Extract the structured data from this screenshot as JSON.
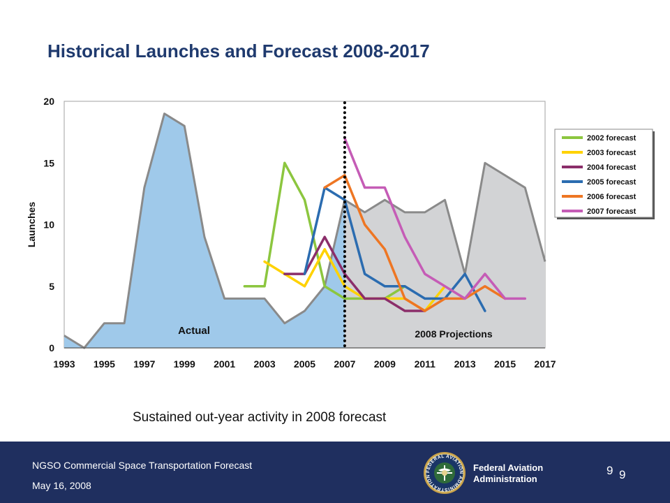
{
  "slide": {
    "title": "Historical Launches and Forecast 2008-2017",
    "caption": "Sustained out-year activity in 2008 forecast"
  },
  "footer": {
    "title": "NGSO Commercial Space Transportation Forecast",
    "date": "May 16, 2008",
    "agency_line1": "Federal Aviation",
    "agency_line2": "Administration",
    "page_number": "9",
    "page_number_shadow": "9",
    "seal_text": "FEDERAL AVIATION ADMINISTRATION"
  },
  "colors": {
    "title": "#1f3a6e",
    "footer_bg": "#1f2f5f",
    "actual_fill": "#9fc9ea",
    "projection_fill": "#d2d3d5",
    "area_line": "#8a8a8a"
  },
  "chart_data": {
    "type": "area",
    "ylabel": "Launches",
    "xlabel": "",
    "ylim": [
      0,
      20
    ],
    "xlim": [
      1993,
      2017
    ],
    "yticks": [
      0,
      5,
      10,
      15,
      20
    ],
    "xticks": [
      1993,
      1995,
      1997,
      1999,
      2001,
      2003,
      2005,
      2007,
      2009,
      2011,
      2013,
      2015,
      2017
    ],
    "divider_year": 2007,
    "area_labels": {
      "actual": "Actual",
      "projection": "2008 Projections"
    },
    "actual": {
      "name": "Actual",
      "x": [
        1993,
        1994,
        1995,
        1996,
        1997,
        1998,
        1999,
        2000,
        2001,
        2002,
        2003,
        2004,
        2005,
        2006,
        2007
      ],
      "values": [
        1,
        0,
        2,
        2,
        13,
        19,
        18,
        9,
        4,
        4,
        4,
        2,
        3,
        5,
        12
      ]
    },
    "projection": {
      "name": "2008 Projections",
      "x": [
        2007,
        2008,
        2009,
        2010,
        2011,
        2012,
        2013,
        2014,
        2015,
        2016,
        2017
      ],
      "values": [
        12,
        11,
        12,
        11,
        11,
        12,
        6,
        15,
        14,
        13,
        7
      ]
    },
    "legend_position": "right",
    "series": [
      {
        "name": "2002 forecast",
        "color": "#8cc63f",
        "x": [
          2002,
          2003,
          2004,
          2005,
          2006,
          2007,
          2008,
          2009,
          2010
        ],
        "values": [
          5,
          5,
          15,
          12,
          5,
          4,
          4,
          4,
          5
        ]
      },
      {
        "name": "2003 forecast",
        "color": "#ffd200",
        "x": [
          2003,
          2004,
          2005,
          2006,
          2007,
          2008,
          2009,
          2010,
          2011,
          2012
        ],
        "values": [
          7,
          6,
          5,
          8,
          5,
          4,
          4,
          4,
          3,
          5
        ]
      },
      {
        "name": "2004 forecast",
        "color": "#8b2e6a",
        "x": [
          2004,
          2005,
          2006,
          2007,
          2008,
          2009,
          2010,
          2011
        ],
        "values": [
          6,
          6,
          9,
          6,
          4,
          4,
          3,
          3
        ]
      },
      {
        "name": "2005 forecast",
        "color": "#2b6cb0",
        "x": [
          2005,
          2006,
          2007,
          2008,
          2009,
          2010,
          2011,
          2012,
          2013,
          2014
        ],
        "values": [
          6,
          13,
          12,
          6,
          5,
          5,
          4,
          4,
          6,
          3
        ]
      },
      {
        "name": "2006 forecast",
        "color": "#ee7623",
        "x": [
          2006,
          2007,
          2008,
          2009,
          2010,
          2011,
          2012,
          2013,
          2014,
          2015
        ],
        "values": [
          13,
          14,
          10,
          8,
          4,
          3,
          4,
          4,
          5,
          4
        ]
      },
      {
        "name": "2007 forecast",
        "color": "#c55cb6",
        "x": [
          2007,
          2008,
          2009,
          2010,
          2011,
          2012,
          2013,
          2014,
          2015,
          2016
        ],
        "values": [
          17,
          13,
          13,
          9,
          6,
          5,
          4,
          6,
          4,
          4
        ]
      }
    ]
  }
}
